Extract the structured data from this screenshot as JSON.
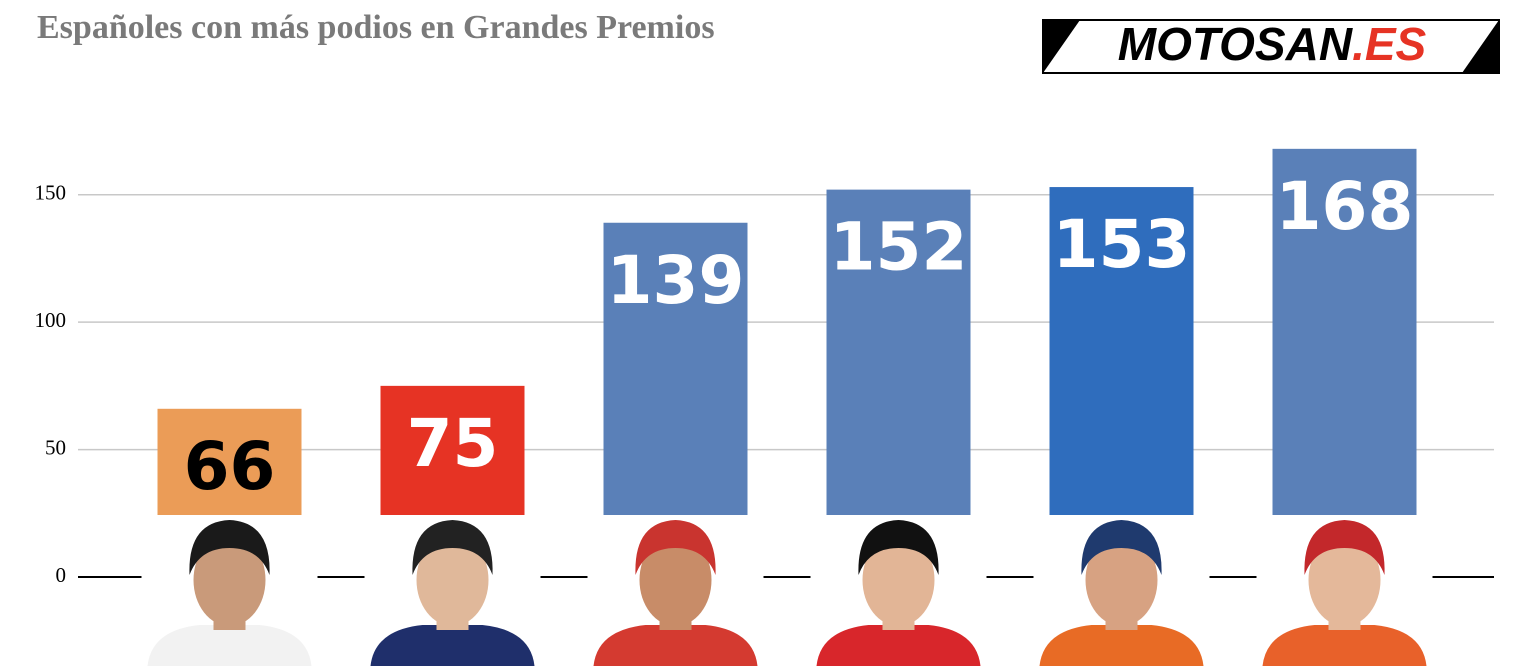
{
  "logo": {
    "main": "MOTOSAN",
    "accent": ".ES"
  },
  "chart_data": {
    "type": "bar",
    "title": "Españoles con más podios en Grandes Premios",
    "categories": [
      null,
      null,
      null,
      null,
      null,
      null
    ],
    "values": [
      66,
      75,
      139,
      152,
      153,
      168
    ],
    "colors": [
      "#eb9c57",
      "#e63324",
      "#5a80b8",
      "#5a80b8",
      "#2f6dbd",
      "#5a80b8"
    ],
    "label_colors": [
      "#000000",
      "#ffffff",
      "#ffffff",
      "#ffffff",
      "#ffffff",
      "#ffffff"
    ],
    "ylim": [
      0,
      175
    ],
    "yticks": [
      0,
      50,
      100,
      150
    ],
    "grid": true
  }
}
